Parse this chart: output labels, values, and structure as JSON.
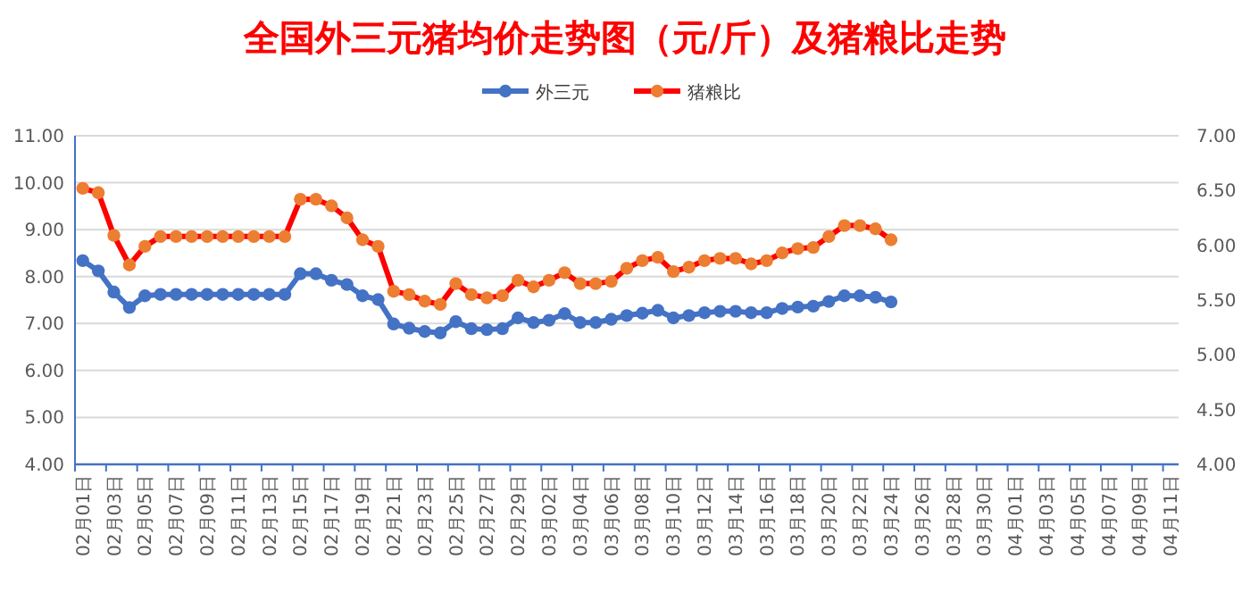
{
  "chart_data": {
    "type": "line",
    "title": "全国外三元猪均价走势图（元/斤）及猪粮比走势",
    "categories": [
      "02月01日",
      null,
      "02月03日",
      null,
      "02月05日",
      null,
      "02月07日",
      null,
      "02月09日",
      null,
      "02月11日",
      null,
      "02月13日",
      null,
      "02月15日",
      null,
      "02月17日",
      null,
      "02月19日",
      null,
      "02月21日",
      null,
      "02月23日",
      null,
      "02月25日",
      null,
      "02月27日",
      null,
      "02月29日",
      null,
      "03月02日",
      null,
      "03月04日",
      null,
      "03月06日",
      null,
      "03月08日",
      null,
      "03月10日",
      null,
      "03月12日",
      null,
      "03月14日",
      null,
      "03月16日",
      null,
      "03月18日",
      null,
      "03月20日",
      null,
      "03月22日",
      null,
      "03月24日",
      null,
      "03月26日",
      null,
      "03月28日",
      null,
      "03月30日",
      null,
      "04月01日",
      null,
      "04月03日",
      null,
      "04月05日",
      null,
      "04月07日",
      null,
      "04月09日",
      null,
      "04月11日"
    ],
    "series": [
      {
        "name": "外三元",
        "color": "#4472c4",
        "values": [
          8.34,
          8.12,
          7.67,
          7.34,
          7.59,
          7.62,
          7.62,
          7.62,
          7.62,
          7.62,
          7.62,
          7.62,
          7.62,
          7.62,
          8.06,
          8.06,
          7.92,
          7.83,
          7.59,
          7.51,
          6.99,
          6.9,
          6.83,
          6.8,
          7.04,
          6.89,
          6.87,
          6.89,
          7.12,
          7.02,
          7.07,
          7.21,
          7.02,
          7.02,
          7.09,
          7.17,
          7.22,
          7.28,
          7.12,
          7.17,
          7.23,
          7.26,
          7.26,
          7.23,
          7.23,
          7.32,
          7.35,
          7.37,
          7.47,
          7.59,
          7.59,
          7.56,
          7.46,
          null,
          null,
          null,
          null,
          null,
          null,
          null,
          null,
          null,
          null,
          null,
          null,
          null,
          null,
          null,
          null,
          null,
          null
        ]
      },
      {
        "name": "猪粮比",
        "color": "#ff0000",
        "axis": "y2",
        "values": [
          6.52,
          6.48,
          6.09,
          5.82,
          5.99,
          6.08,
          6.08,
          6.08,
          6.08,
          6.08,
          6.08,
          6.08,
          6.08,
          6.08,
          6.42,
          6.42,
          6.36,
          6.25,
          6.05,
          5.99,
          5.58,
          5.55,
          5.49,
          5.46,
          5.65,
          5.55,
          5.52,
          5.54,
          5.68,
          5.62,
          5.68,
          5.75,
          5.65,
          5.65,
          5.67,
          5.79,
          5.86,
          5.89,
          5.76,
          5.8,
          5.86,
          5.88,
          5.88,
          5.83,
          5.86,
          5.93,
          5.97,
          5.98,
          6.08,
          6.18,
          6.18,
          6.15,
          6.05,
          null,
          null,
          null,
          null,
          null,
          null,
          null,
          null,
          null,
          null,
          null,
          null,
          null,
          null,
          null,
          null,
          null,
          null
        ]
      }
    ],
    "ylim": [
      4,
      11
    ],
    "yticks": [
      {
        "value": 4,
        "label": "4.00"
      },
      {
        "value": 5,
        "label": "5.00"
      },
      {
        "value": 6,
        "label": "6.00"
      },
      {
        "value": 7,
        "label": "7.00"
      },
      {
        "value": 8,
        "label": "8.00"
      },
      {
        "value": 9,
        "label": "9.00"
      },
      {
        "value": 10,
        "label": "10.00"
      },
      {
        "value": 11,
        "label": "11.00"
      }
    ],
    "y2lim": [
      4,
      7
    ],
    "y2ticks": [
      {
        "value": 4,
        "label": "4.00"
      },
      {
        "value": 4.5,
        "label": "4.50"
      },
      {
        "value": 5,
        "label": "5.00"
      },
      {
        "value": 5.5,
        "label": "5.50"
      },
      {
        "value": 6,
        "label": "6.00"
      },
      {
        "value": 6.5,
        "label": "6.50"
      },
      {
        "value": 7,
        "label": "7.00"
      }
    ],
    "grid": "y",
    "legend": "top",
    "marker": "circle"
  }
}
